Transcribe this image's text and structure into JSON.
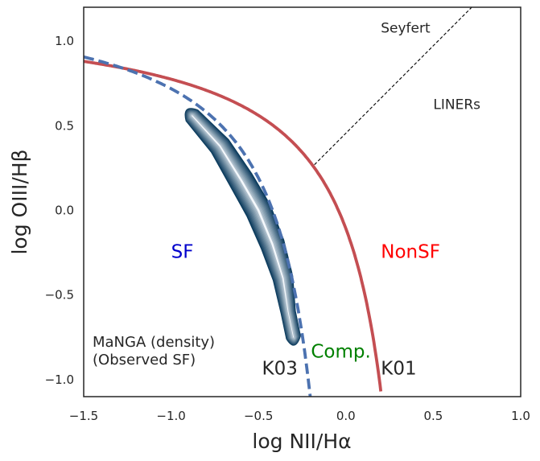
{
  "chart_data": {
    "type": "line",
    "xlabel": "log NII/Hα",
    "ylabel": "log OIII/Hβ",
    "xlim": [
      -1.5,
      1.0
    ],
    "ylim": [
      -1.1,
      1.2
    ],
    "grid": false,
    "x_ticks": [
      {
        "value": -1.5,
        "label": "−1.5"
      },
      {
        "value": -1.0,
        "label": "−1.0"
      },
      {
        "value": -0.5,
        "label": "−0.5"
      },
      {
        "value": 0.0,
        "label": "0.0"
      },
      {
        "value": 0.5,
        "label": "0.5"
      },
      {
        "value": 1.0,
        "label": "1.0"
      }
    ],
    "y_ticks": [
      {
        "value": 1.0,
        "label": "1.0"
      },
      {
        "value": 0.5,
        "label": "0.5"
      },
      {
        "value": 0.0,
        "label": "0.0"
      },
      {
        "value": -0.5,
        "label": "−0.5"
      },
      {
        "value": -1.0,
        "label": "−1.0"
      }
    ],
    "curves": [
      {
        "id": "k01",
        "label": "K01",
        "color": "#c44e52",
        "style": "solid",
        "equation": "0.61/(x-0.47)+1.19",
        "x_max": 0.2
      },
      {
        "id": "k03",
        "label": "K03",
        "color": "#4c72b0",
        "style": "dashed",
        "equation": "0.61/(x-0.05)+1.3",
        "x_max": -0.2
      },
      {
        "id": "liner",
        "label": "",
        "color": "#000000",
        "style": "dotted-thin",
        "points": [
          [
            -0.18,
            0.27
          ],
          [
            0.72,
            1.2
          ]
        ]
      }
    ],
    "density": {
      "label": "MaNGA (density)",
      "sublabel": "(Observed SF)",
      "ridge": [
        [
          -0.88,
          0.56
        ],
        [
          -0.72,
          0.38
        ],
        [
          -0.6,
          0.18
        ],
        [
          -0.5,
          0.0
        ],
        [
          -0.42,
          -0.2
        ],
        [
          -0.36,
          -0.4
        ],
        [
          -0.33,
          -0.6
        ],
        [
          -0.3,
          -0.75
        ]
      ],
      "levels": 12,
      "color_outer": "#0a3a5c",
      "color_inner": "#f4f8fc"
    },
    "annotations": [
      {
        "text": "Seyfert",
        "x": 0.2,
        "y": 1.05,
        "color": "#262626",
        "size": 17
      },
      {
        "text": "LINERs",
        "x": 0.5,
        "y": 0.6,
        "color": "#262626",
        "size": 17
      },
      {
        "text": "SF",
        "x": -1.0,
        "y": -0.28,
        "color": "#0000cc",
        "size": 23
      },
      {
        "text": "NonSF",
        "x": 0.2,
        "y": -0.28,
        "color": "#ff0000",
        "size": 23
      },
      {
        "text": "Comp.",
        "x": -0.2,
        "y": -0.87,
        "color": "#008000",
        "size": 23
      },
      {
        "text": "K03",
        "x": -0.48,
        "y": -0.97,
        "color": "#262626",
        "size": 23
      },
      {
        "text": "K01",
        "x": 0.2,
        "y": -0.97,
        "color": "#262626",
        "size": 23
      }
    ]
  }
}
